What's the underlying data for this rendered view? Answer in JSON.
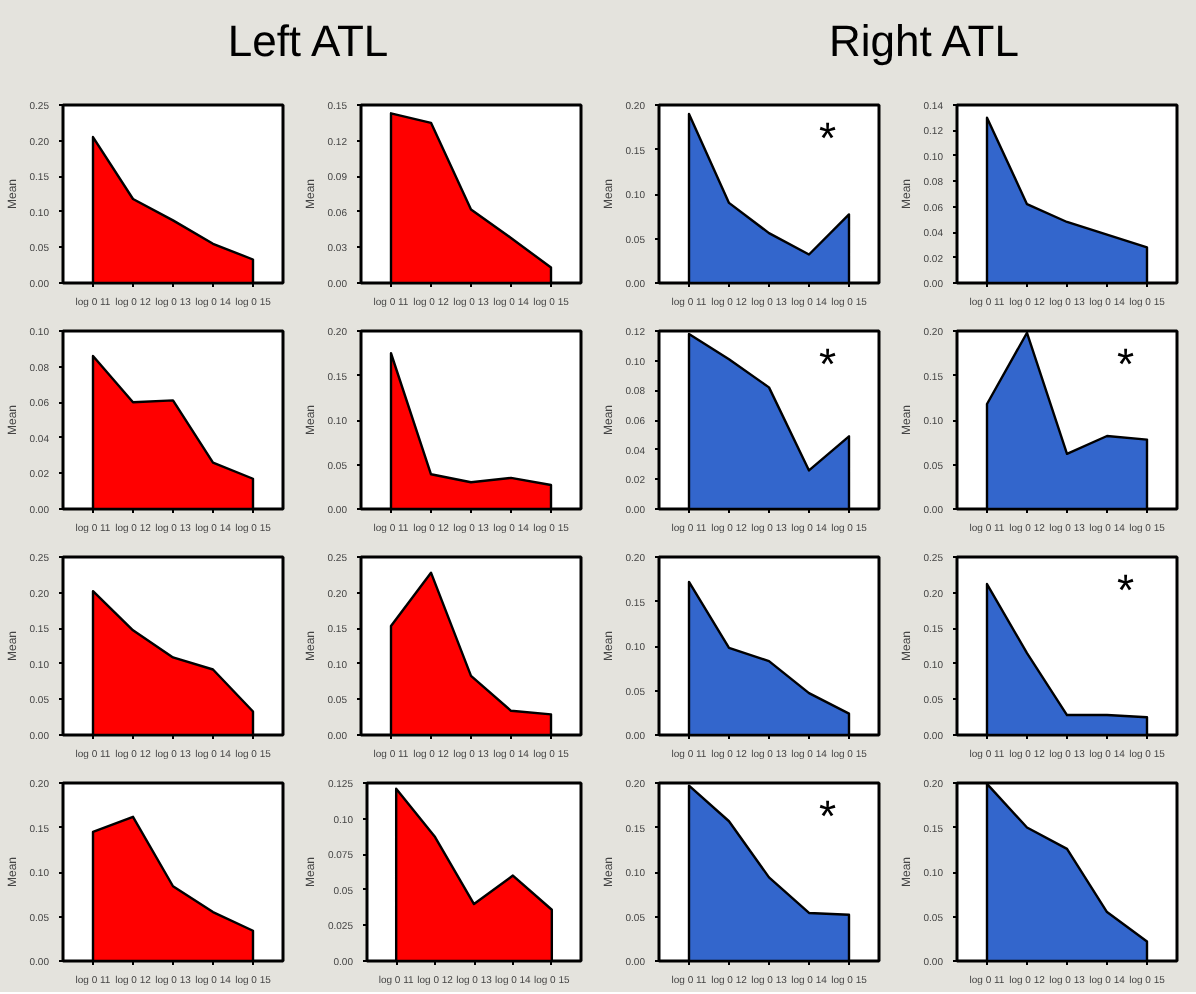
{
  "chart_data": [
    {
      "type": "area",
      "title": "Left ATL",
      "ylabel": "Mean",
      "categories": [
        "log 0 11",
        "log 0 12",
        "log 0 13",
        "log 0 14",
        "log 0 15"
      ],
      "series": [
        {
          "color": "#ff0000",
          "values": [
            0.205,
            0.118,
            0.088,
            0.055,
            0.033
          ]
        }
      ],
      "ylim": [
        0,
        0.25
      ],
      "yticks": [
        {
          "value": 0,
          "label": "0.00"
        },
        0.05,
        {
          "value": 0.1,
          "label": "0.10"
        },
        0.15,
        {
          "value": 0.2,
          "label": "0.20"
        },
        0.25
      ]
    },
    {
      "type": "area",
      "ylabel": "Mean",
      "categories": [
        "log 0 11",
        "log 0 12",
        "log 0 13",
        "log 0 14",
        "log 0 15"
      ],
      "series": [
        {
          "color": "#ff0000",
          "values": [
            0.143,
            0.135,
            0.062,
            0.038,
            0.013
          ]
        }
      ],
      "ylim": [
        0,
        0.15
      ],
      "yticks": [
        {
          "value": 0,
          "label": "0.00"
        },
        0.03,
        0.06,
        0.09,
        0.12,
        0.15
      ]
    },
    {
      "type": "area",
      "title": "Right ATL",
      "ylabel": "Mean",
      "annotations": [
        "*"
      ],
      "categories": [
        "log 0 11",
        "log 0 12",
        "log 0 13",
        "log 0 14",
        "log 0 15"
      ],
      "series": [
        {
          "color": "#3366cc",
          "values": [
            0.19,
            0.09,
            0.056,
            0.032,
            0.077
          ]
        }
      ],
      "ylim": [
        0,
        0.2
      ],
      "yticks": [
        {
          "value": 0,
          "label": "0.00"
        },
        0.05,
        {
          "value": 0.1,
          "label": "0.10"
        },
        0.15,
        {
          "value": 0.2,
          "label": "0.20"
        }
      ]
    },
    {
      "type": "area",
      "ylabel": "Mean",
      "categories": [
        "log 0 11",
        "log 0 12",
        "log 0 13",
        "log 0 14",
        "log 0 15"
      ],
      "series": [
        {
          "color": "#3366cc",
          "values": [
            0.13,
            0.062,
            0.048,
            0.038,
            0.028
          ]
        }
      ],
      "ylim": [
        0,
        0.14
      ],
      "yticks": [
        {
          "value": 0,
          "label": "0.00"
        },
        0.02,
        0.04,
        0.06,
        0.08,
        {
          "value": 0.1,
          "label": "0.10"
        },
        0.12,
        0.14
      ]
    },
    {
      "type": "area",
      "ylabel": "Mean",
      "categories": [
        "log 0 11",
        "log 0 12",
        "log 0 13",
        "log 0 14",
        "log 0 15"
      ],
      "series": [
        {
          "color": "#ff0000",
          "values": [
            0.086,
            0.06,
            0.061,
            0.026,
            0.017
          ]
        }
      ],
      "ylim": [
        0,
        0.1
      ],
      "yticks": [
        {
          "value": 0,
          "label": "0.00"
        },
        0.02,
        0.04,
        0.06,
        0.08,
        {
          "value": 0.1,
          "label": "0.10"
        }
      ]
    },
    {
      "type": "area",
      "ylabel": "Mean",
      "categories": [
        "log 0 11",
        "log 0 12",
        "log 0 13",
        "log 0 14",
        "log 0 15"
      ],
      "series": [
        {
          "color": "#ff0000",
          "values": [
            0.175,
            0.039,
            0.03,
            0.035,
            0.027
          ]
        }
      ],
      "ylim": [
        0,
        0.2
      ],
      "yticks": [
        {
          "value": 0,
          "label": "0.00"
        },
        0.05,
        {
          "value": 0.1,
          "label": "0.10"
        },
        0.15,
        {
          "value": 0.2,
          "label": "0.20"
        }
      ]
    },
    {
      "type": "area",
      "ylabel": "Mean",
      "annotations": [
        "*"
      ],
      "categories": [
        "log 0 11",
        "log 0 12",
        "log 0 13",
        "log 0 14",
        "log 0 15"
      ],
      "series": [
        {
          "color": "#3366cc",
          "values": [
            0.118,
            0.101,
            0.082,
            0.026,
            0.049
          ]
        }
      ],
      "ylim": [
        0,
        0.12
      ],
      "yticks": [
        {
          "value": 0,
          "label": "0.00"
        },
        0.02,
        0.04,
        0.06,
        0.08,
        {
          "value": 0.1,
          "label": "0.10"
        },
        0.12
      ]
    },
    {
      "type": "area",
      "ylabel": "Mean",
      "annotations": [
        "*"
      ],
      "categories": [
        "log 0 11",
        "log 0 12",
        "log 0 13",
        "log 0 14",
        "log 0 15"
      ],
      "series": [
        {
          "color": "#3366cc",
          "values": [
            0.118,
            0.198,
            0.062,
            0.082,
            0.078
          ]
        }
      ],
      "ylim": [
        0,
        0.2
      ],
      "yticks": [
        {
          "value": 0,
          "label": "0.00"
        },
        0.05,
        {
          "value": 0.1,
          "label": "0.10"
        },
        0.15,
        {
          "value": 0.2,
          "label": "0.20"
        }
      ]
    },
    {
      "type": "area",
      "ylabel": "Mean",
      "categories": [
        "log 0 11",
        "log 0 12",
        "log 0 13",
        "log 0 14",
        "log 0 15"
      ],
      "series": [
        {
          "color": "#ff0000",
          "values": [
            0.202,
            0.147,
            0.109,
            0.092,
            0.033
          ]
        }
      ],
      "ylim": [
        0,
        0.25
      ],
      "yticks": [
        {
          "value": 0,
          "label": "0.00"
        },
        0.05,
        {
          "value": 0.1,
          "label": "0.10"
        },
        0.15,
        {
          "value": 0.2,
          "label": "0.20"
        },
        0.25
      ]
    },
    {
      "type": "area",
      "ylabel": "Mean",
      "categories": [
        "log 0 11",
        "log 0 12",
        "log 0 13",
        "log 0 14",
        "log 0 15"
      ],
      "series": [
        {
          "color": "#ff0000",
          "values": [
            0.153,
            0.228,
            0.083,
            0.034,
            0.029
          ]
        }
      ],
      "ylim": [
        0,
        0.25
      ],
      "yticks": [
        {
          "value": 0,
          "label": "0.00"
        },
        0.05,
        {
          "value": 0.1,
          "label": "0.10"
        },
        0.15,
        {
          "value": 0.2,
          "label": "0.20"
        },
        0.25
      ]
    },
    {
      "type": "area",
      "ylabel": "Mean",
      "categories": [
        "log 0 11",
        "log 0 12",
        "log 0 13",
        "log 0 14",
        "log 0 15"
      ],
      "series": [
        {
          "color": "#3366cc",
          "values": [
            0.172,
            0.098,
            0.083,
            0.047,
            0.024
          ]
        }
      ],
      "ylim": [
        0,
        0.2
      ],
      "yticks": [
        {
          "value": 0,
          "label": "0.00"
        },
        0.05,
        {
          "value": 0.1,
          "label": "0.10"
        },
        0.15,
        {
          "value": 0.2,
          "label": "0.20"
        }
      ]
    },
    {
      "type": "area",
      "ylabel": "Mean",
      "annotations": [
        "*"
      ],
      "categories": [
        "log 0 11",
        "log 0 12",
        "log 0 13",
        "log 0 14",
        "log 0 15"
      ],
      "series": [
        {
          "color": "#3366cc",
          "values": [
            0.212,
            0.115,
            0.028,
            0.028,
            0.025
          ]
        }
      ],
      "ylim": [
        0,
        0.25
      ],
      "yticks": [
        {
          "value": 0,
          "label": "0.00"
        },
        0.05,
        {
          "value": 0.1,
          "label": "0.10"
        },
        0.15,
        {
          "value": 0.2,
          "label": "0.20"
        },
        0.25
      ]
    },
    {
      "type": "area",
      "ylabel": "Mean",
      "categories": [
        "log 0 11",
        "log 0 12",
        "log 0 13",
        "log 0 14",
        "log 0 15"
      ],
      "series": [
        {
          "color": "#ff0000",
          "values": [
            0.145,
            0.162,
            0.084,
            0.055,
            0.034
          ]
        }
      ],
      "ylim": [
        0,
        0.2
      ],
      "yticks": [
        {
          "value": 0,
          "label": "0.00"
        },
        0.05,
        {
          "value": 0.1,
          "label": "0.10"
        },
        0.15,
        {
          "value": 0.2,
          "label": "0.20"
        }
      ]
    },
    {
      "type": "area",
      "ylabel": "Mean",
      "categories": [
        "log 0 11",
        "log 0 12",
        "log 0 13",
        "log 0 14",
        "log 0 15"
      ],
      "series": [
        {
          "color": "#ff0000",
          "values": [
            0.121,
            0.087,
            0.04,
            0.06,
            0.036
          ]
        }
      ],
      "ylim": [
        0,
        0.125
      ],
      "yticks": [
        {
          "value": 0,
          "label": "0.00"
        },
        0.025,
        0.05,
        0.075,
        {
          "value": 0.1,
          "label": "0.10"
        },
        0.125
      ]
    },
    {
      "type": "area",
      "ylabel": "Mean",
      "annotations": [
        "*"
      ],
      "categories": [
        "log 0 11",
        "log 0 12",
        "log 0 13",
        "log 0 14",
        "log 0 15"
      ],
      "series": [
        {
          "color": "#3366cc",
          "values": [
            0.197,
            0.157,
            0.094,
            0.054,
            0.052
          ]
        }
      ],
      "ylim": [
        0,
        0.2
      ],
      "yticks": [
        {
          "value": 0,
          "label": "0.00"
        },
        0.05,
        {
          "value": 0.1,
          "label": "0.10"
        },
        0.15,
        {
          "value": 0.2,
          "label": "0.20"
        }
      ]
    },
    {
      "type": "area",
      "ylabel": "Mean",
      "categories": [
        "log 0 11",
        "log 0 12",
        "log 0 13",
        "log 0 14",
        "log 0 15"
      ],
      "series": [
        {
          "color": "#3366cc",
          "values": [
            0.199,
            0.15,
            0.126,
            0.055,
            0.022
          ]
        }
      ],
      "ylim": [
        0,
        0.2
      ],
      "yticks": [
        {
          "value": 0,
          "label": "0.00"
        },
        0.05,
        {
          "value": 0.1,
          "label": "0.10"
        },
        0.15,
        {
          "value": 0.2,
          "label": "0.20"
        }
      ]
    }
  ]
}
